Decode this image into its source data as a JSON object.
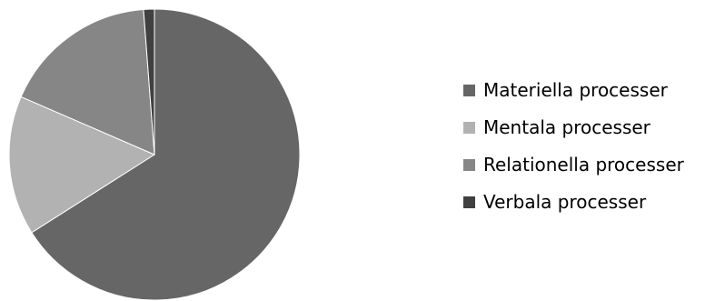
{
  "chart_data": {
    "type": "pie",
    "title": "",
    "legend_position": "right",
    "slices": [
      {
        "label": "Materiella processer",
        "value": 66,
        "color": "#666666"
      },
      {
        "label": "Mentala processer",
        "value": 15.5,
        "color": "#b2b2b2"
      },
      {
        "label": "Relationella processer",
        "value": 17.3,
        "color": "#868686"
      },
      {
        "label": "Verbala processer",
        "value": 1.2,
        "color": "#404040"
      }
    ]
  }
}
